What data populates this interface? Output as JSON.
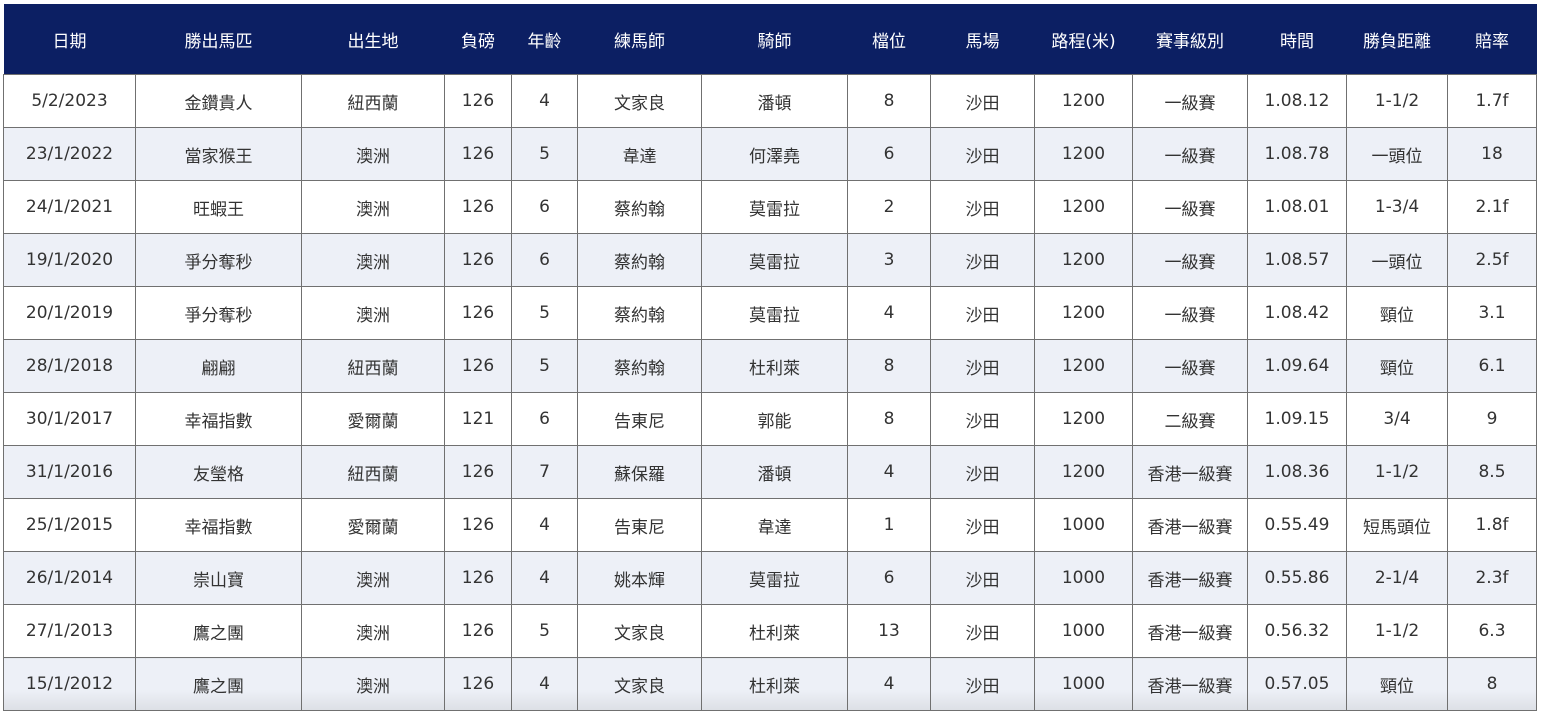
{
  "table": {
    "headers": [
      "日期",
      "勝出馬匹",
      "出生地",
      "負磅",
      "年齡",
      "練馬師",
      "騎師",
      "檔位",
      "馬場",
      "路程(米)",
      "賽事級別",
      "時間",
      "勝負距離",
      "賠率"
    ],
    "rows": [
      [
        "5/2/2023",
        "金鑽貴人",
        "紐西蘭",
        "126",
        "4",
        "文家良",
        "潘頓",
        "8",
        "沙田",
        "1200",
        "一級賽",
        "1.08.12",
        "1-1/2",
        "1.7f"
      ],
      [
        "23/1/2022",
        "當家猴王",
        "澳洲",
        "126",
        "5",
        "韋達",
        "何澤堯",
        "6",
        "沙田",
        "1200",
        "一級賽",
        "1.08.78",
        "一頭位",
        "18"
      ],
      [
        "24/1/2021",
        "旺蝦王",
        "澳洲",
        "126",
        "6",
        "蔡約翰",
        "莫雷拉",
        "2",
        "沙田",
        "1200",
        "一級賽",
        "1.08.01",
        "1-3/4",
        "2.1f"
      ],
      [
        "19/1/2020",
        "爭分奪秒",
        "澳洲",
        "126",
        "6",
        "蔡約翰",
        "莫雷拉",
        "3",
        "沙田",
        "1200",
        "一級賽",
        "1.08.57",
        "一頭位",
        "2.5f"
      ],
      [
        "20/1/2019",
        "爭分奪秒",
        "澳洲",
        "126",
        "5",
        "蔡約翰",
        "莫雷拉",
        "4",
        "沙田",
        "1200",
        "一級賽",
        "1.08.42",
        "頸位",
        "3.1"
      ],
      [
        "28/1/2018",
        "翩翩",
        "紐西蘭",
        "126",
        "5",
        "蔡約翰",
        "杜利萊",
        "8",
        "沙田",
        "1200",
        "一級賽",
        "1.09.64",
        "頸位",
        "6.1"
      ],
      [
        "30/1/2017",
        "幸福指數",
        "愛爾蘭",
        "121",
        "6",
        "告東尼",
        "郭能",
        "8",
        "沙田",
        "1200",
        "二級賽",
        "1.09.15",
        "3/4",
        "9"
      ],
      [
        "31/1/2016",
        "友瑩格",
        "紐西蘭",
        "126",
        "7",
        "蘇保羅",
        "潘頓",
        "4",
        "沙田",
        "1200",
        "香港一級賽",
        "1.08.36",
        "1-1/2",
        "8.5"
      ],
      [
        "25/1/2015",
        "幸福指數",
        "愛爾蘭",
        "126",
        "4",
        "告東尼",
        "韋達",
        "1",
        "沙田",
        "1000",
        "香港一級賽",
        "0.55.49",
        "短馬頭位",
        "1.8f"
      ],
      [
        "26/1/2014",
        "崇山寶",
        "澳洲",
        "126",
        "4",
        "姚本輝",
        "莫雷拉",
        "6",
        "沙田",
        "1000",
        "香港一級賽",
        "0.55.86",
        "2-1/4",
        "2.3f"
      ],
      [
        "27/1/2013",
        "鷹之團",
        "澳洲",
        "126",
        "5",
        "文家良",
        "杜利萊",
        "13",
        "沙田",
        "1000",
        "香港一級賽",
        "0.56.32",
        "1-1/2",
        "6.3"
      ],
      [
        "15/1/2012",
        "鷹之團",
        "澳洲",
        "126",
        "4",
        "文家良",
        "杜利萊",
        "4",
        "沙田",
        "1000",
        "香港一級賽",
        "0.57.05",
        "頸位",
        "8"
      ]
    ]
  },
  "colors": {
    "header_bg": "#0c1f63",
    "alt_row": "#edf0f7"
  }
}
